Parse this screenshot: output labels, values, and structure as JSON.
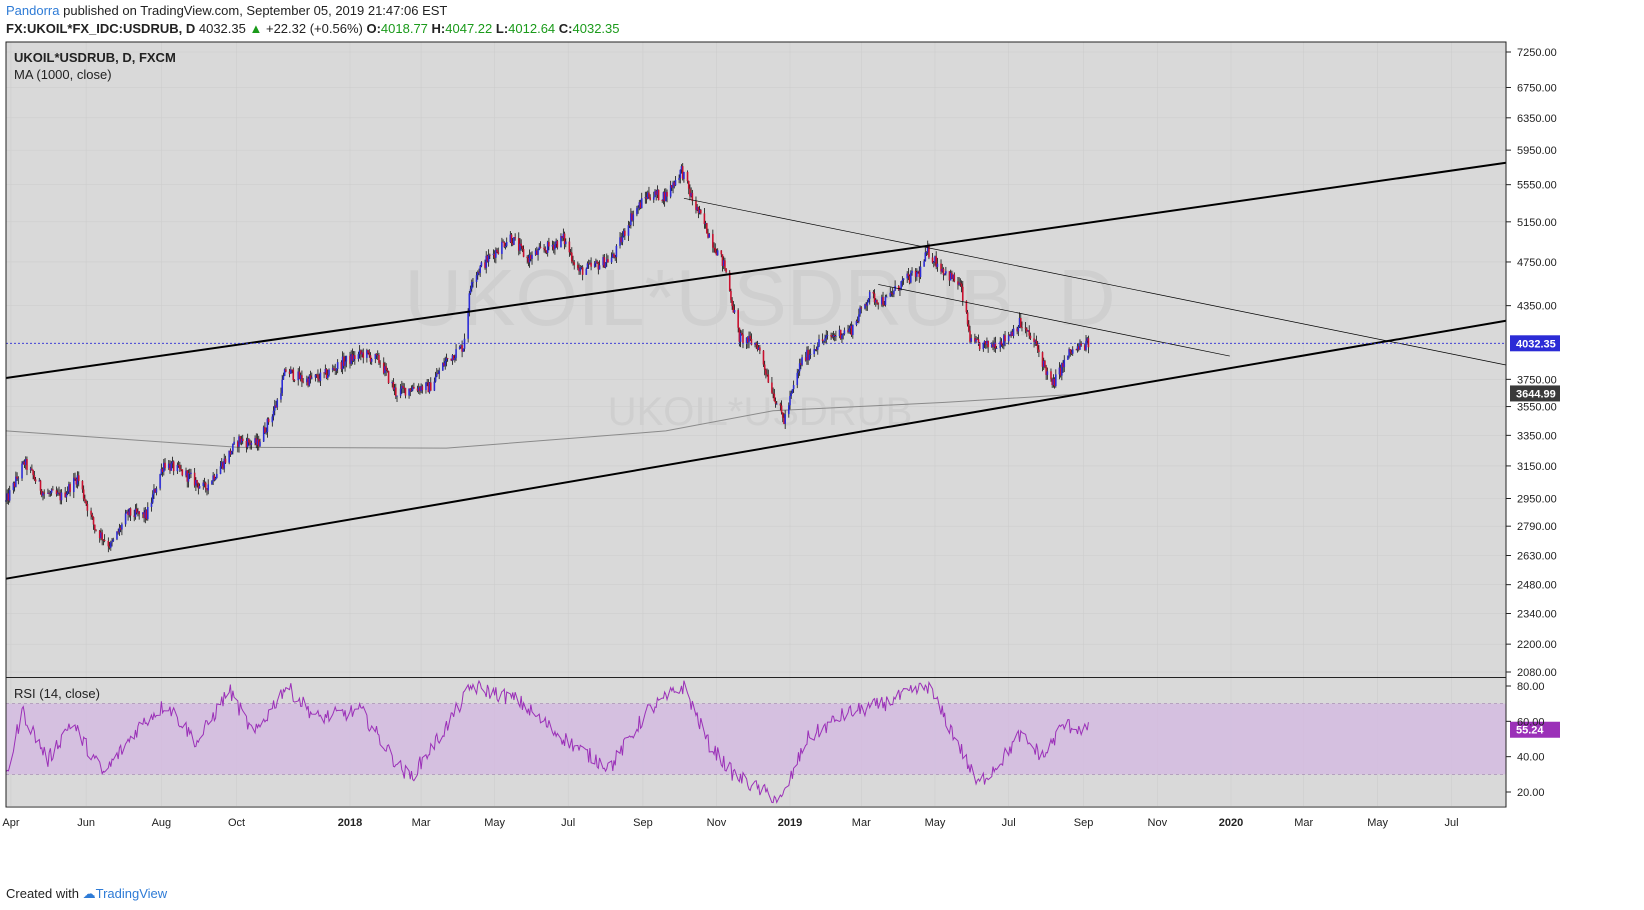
{
  "header": {
    "author": "Pandorra",
    "published": "published on TradingView.com, September 05, 2019 21:47:06 EST",
    "symbol_full": "FX:UKOIL*FX_IDC:USDRUB, D",
    "last": "4032.35",
    "change": "+22.32 (+0.56%)",
    "open_label": "O:",
    "open": "4018.77",
    "high_label": "H:",
    "high": "4047.22",
    "low_label": "L:",
    "low": "4012.64",
    "close_label": "C:",
    "close": "4032.35"
  },
  "pane_labels": {
    "symbol": "UKOIL*USDRUB, D, FXCM",
    "ma": "MA (1000, close)",
    "rsi": "RSI (14, close)"
  },
  "watermark": {
    "main": "UKOIL*USDRUB, D",
    "sub": "UKOIL*USDRUB"
  },
  "colors": {
    "background": "#d9d9d9",
    "up_candle": "#2b2bd6",
    "down_candle": "#c8102e",
    "ma_line": "#8a8a8a",
    "trendline": "#000000",
    "rsi_line": "#9b30b8",
    "rsi_band": "#d4bde0",
    "last_price_line": "#2b2bd6"
  },
  "footer": {
    "created_with": "Created with",
    "brand": "TradingView"
  },
  "chart_data": [
    {
      "type": "candlestick",
      "title": "UKOIL*USDRUB, D, FXCM",
      "y_axis_labels": [
        "7250.00",
        "6750.00",
        "6350.00",
        "5950.00",
        "5550.00",
        "5150.00",
        "4750.00",
        "4350.00",
        "3750.00",
        "3550.00",
        "3350.00",
        "3150.00",
        "2950.00",
        "2790.00",
        "2630.00",
        "2480.00",
        "2340.00",
        "2200.00",
        "2080.00"
      ],
      "x_axis_labels": [
        "Apr",
        "Jun",
        "Aug",
        "Oct",
        "2018",
        "Mar",
        "May",
        "Jul",
        "Sep",
        "Nov",
        "2019",
        "Mar",
        "May",
        "Jul",
        "Sep",
        "Nov",
        "2020",
        "Mar",
        "May",
        "Jul"
      ],
      "scale": "log",
      "last_price_label": "4032.35",
      "ma_value_label": "3644.99",
      "approx_closes": [
        {
          "date": "2017-03-28",
          "close": 2930
        },
        {
          "date": "2017-04-12",
          "close": 3170
        },
        {
          "date": "2017-04-28",
          "close": 2980
        },
        {
          "date": "2017-05-12",
          "close": 2960
        },
        {
          "date": "2017-05-25",
          "close": 3080
        },
        {
          "date": "2017-06-08",
          "close": 2780
        },
        {
          "date": "2017-06-21",
          "close": 2680
        },
        {
          "date": "2017-07-05",
          "close": 2860
        },
        {
          "date": "2017-07-20",
          "close": 2850
        },
        {
          "date": "2017-08-03",
          "close": 3170
        },
        {
          "date": "2017-08-20",
          "close": 3100
        },
        {
          "date": "2017-09-05",
          "close": 3010
        },
        {
          "date": "2017-09-20",
          "close": 3170
        },
        {
          "date": "2017-10-03",
          "close": 3320
        },
        {
          "date": "2017-10-18",
          "close": 3290
        },
        {
          "date": "2017-11-02",
          "close": 3560
        },
        {
          "date": "2017-11-10",
          "close": 3820
        },
        {
          "date": "2017-11-25",
          "close": 3740
        },
        {
          "date": "2017-12-10",
          "close": 3770
        },
        {
          "date": "2017-12-26",
          "close": 3880
        },
        {
          "date": "2018-01-12",
          "close": 3950
        },
        {
          "date": "2018-01-26",
          "close": 3890
        },
        {
          "date": "2018-02-08",
          "close": 3650
        },
        {
          "date": "2018-02-22",
          "close": 3690
        },
        {
          "date": "2018-03-08",
          "close": 3690
        },
        {
          "date": "2018-03-22",
          "close": 3900
        },
        {
          "date": "2018-04-05",
          "close": 4010
        },
        {
          "date": "2018-04-12",
          "close": 4600
        },
        {
          "date": "2018-04-27",
          "close": 4800
        },
        {
          "date": "2018-05-14",
          "close": 5000
        },
        {
          "date": "2018-05-28",
          "close": 4780
        },
        {
          "date": "2018-06-11",
          "close": 4870
        },
        {
          "date": "2018-06-27",
          "close": 4980
        },
        {
          "date": "2018-07-10",
          "close": 4660
        },
        {
          "date": "2018-07-25",
          "close": 4720
        },
        {
          "date": "2018-08-08",
          "close": 4800
        },
        {
          "date": "2018-08-22",
          "close": 5200
        },
        {
          "date": "2018-09-05",
          "close": 5440
        },
        {
          "date": "2018-09-20",
          "close": 5430
        },
        {
          "date": "2018-10-03",
          "close": 5720
        },
        {
          "date": "2018-10-12",
          "close": 5380
        },
        {
          "date": "2018-10-26",
          "close": 5020
        },
        {
          "date": "2018-11-08",
          "close": 4700
        },
        {
          "date": "2018-11-20",
          "close": 4080
        },
        {
          "date": "2018-12-05",
          "close": 4020
        },
        {
          "date": "2018-12-18",
          "close": 3650
        },
        {
          "date": "2018-12-27",
          "close": 3450
        },
        {
          "date": "2019-01-10",
          "close": 3880
        },
        {
          "date": "2019-01-24",
          "close": 4030
        },
        {
          "date": "2019-02-07",
          "close": 4100
        },
        {
          "date": "2019-02-21",
          "close": 4150
        },
        {
          "date": "2019-03-07",
          "close": 4430
        },
        {
          "date": "2019-03-21",
          "close": 4390
        },
        {
          "date": "2019-04-04",
          "close": 4560
        },
        {
          "date": "2019-04-18",
          "close": 4650
        },
        {
          "date": "2019-04-25",
          "close": 4850
        },
        {
          "date": "2019-05-09",
          "close": 4660
        },
        {
          "date": "2019-05-22",
          "close": 4530
        },
        {
          "date": "2019-05-31",
          "close": 4030
        },
        {
          "date": "2019-06-13",
          "close": 4010
        },
        {
          "date": "2019-06-27",
          "close": 4060
        },
        {
          "date": "2019-07-10",
          "close": 4200
        },
        {
          "date": "2019-07-24",
          "close": 4010
        },
        {
          "date": "2019-08-06",
          "close": 3700
        },
        {
          "date": "2019-08-20",
          "close": 3950
        },
        {
          "date": "2019-09-05",
          "close": 4032.35
        }
      ],
      "ma_1000": [
        {
          "date": "2017-03-28",
          "value": 3380
        },
        {
          "date": "2017-10-03",
          "value": 3270
        },
        {
          "date": "2018-03-22",
          "value": 3265
        },
        {
          "date": "2018-09-20",
          "value": 3380
        },
        {
          "date": "2018-12-18",
          "value": 3520
        },
        {
          "date": "2019-05-09",
          "value": 3580
        },
        {
          "date": "2019-09-05",
          "value": 3644.99
        }
      ],
      "trendlines": [
        {
          "name": "upper-channel",
          "start": {
            "date": "2017-03-28",
            "price": 3760
          },
          "end": {
            "date": "2020-08-15",
            "price": 5800
          }
        },
        {
          "name": "lower-channel",
          "start": {
            "date": "2017-03-28",
            "price": 2510
          },
          "end": {
            "date": "2020-08-15",
            "price": 4220
          }
        },
        {
          "name": "long-resistance",
          "start": {
            "date": "2018-10-05",
            "price": 5400
          },
          "end": {
            "date": "2020-08-15",
            "price": 3860
          }
        },
        {
          "name": "short-resistance",
          "start": {
            "date": "2019-03-15",
            "price": 4540
          },
          "end": {
            "date": "2019-12-31",
            "price": 3930
          }
        }
      ]
    },
    {
      "type": "line",
      "title": "RSI (14, close)",
      "y_axis_labels": [
        "80.00",
        "60.00",
        "40.00",
        "20.00"
      ],
      "ylim": [
        14,
        84
      ],
      "band": [
        30,
        70
      ],
      "last_value_label": "55.24",
      "approx_values": [
        {
          "date": "2017-03-28",
          "value": 28
        },
        {
          "date": "2017-04-10",
          "value": 66
        },
        {
          "date": "2017-05-01",
          "value": 38
        },
        {
          "date": "2017-05-20",
          "value": 60
        },
        {
          "date": "2017-06-15",
          "value": 30
        },
        {
          "date": "2017-07-15",
          "value": 58
        },
        {
          "date": "2017-08-05",
          "value": 70
        },
        {
          "date": "2017-08-30",
          "value": 48
        },
        {
          "date": "2017-09-25",
          "value": 78
        },
        {
          "date": "2017-10-15",
          "value": 52
        },
        {
          "date": "2017-11-10",
          "value": 80
        },
        {
          "date": "2017-12-05",
          "value": 62
        },
        {
          "date": "2018-01-10",
          "value": 66
        },
        {
          "date": "2018-02-10",
          "value": 35
        },
        {
          "date": "2018-02-20",
          "value": 28
        },
        {
          "date": "2018-03-20",
          "value": 55
        },
        {
          "date": "2018-04-12",
          "value": 80
        },
        {
          "date": "2018-05-20",
          "value": 72
        },
        {
          "date": "2018-06-20",
          "value": 54
        },
        {
          "date": "2018-07-15",
          "value": 42
        },
        {
          "date": "2018-08-05",
          "value": 34
        },
        {
          "date": "2018-09-05",
          "value": 66
        },
        {
          "date": "2018-10-05",
          "value": 80
        },
        {
          "date": "2018-10-25",
          "value": 48
        },
        {
          "date": "2018-11-15",
          "value": 30
        },
        {
          "date": "2018-12-05",
          "value": 22
        },
        {
          "date": "2018-12-25",
          "value": 15
        },
        {
          "date": "2019-01-15",
          "value": 50
        },
        {
          "date": "2019-02-15",
          "value": 64
        },
        {
          "date": "2019-03-20",
          "value": 70
        },
        {
          "date": "2019-04-25",
          "value": 80
        },
        {
          "date": "2019-05-20",
          "value": 48
        },
        {
          "date": "2019-06-05",
          "value": 24
        },
        {
          "date": "2019-06-25",
          "value": 38
        },
        {
          "date": "2019-07-10",
          "value": 52
        },
        {
          "date": "2019-07-30",
          "value": 40
        },
        {
          "date": "2019-08-15",
          "value": 58
        },
        {
          "date": "2019-09-05",
          "value": 55.24
        }
      ]
    }
  ]
}
